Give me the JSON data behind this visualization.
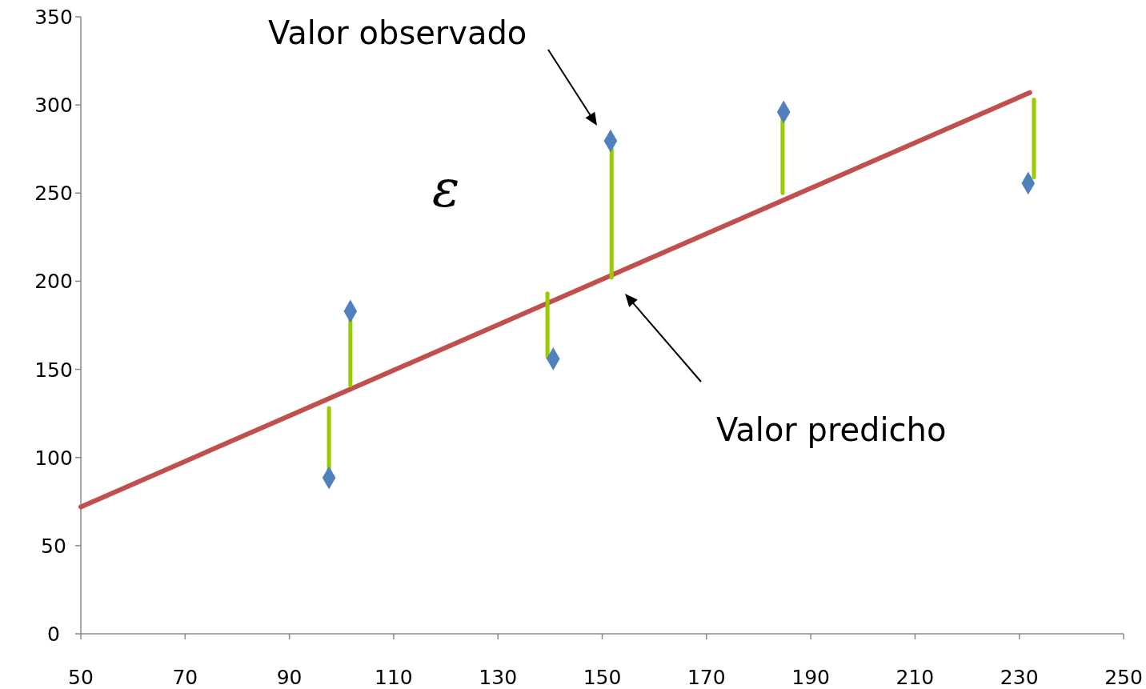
{
  "chart_data": {
    "type": "scatter",
    "xlim": [
      50,
      250
    ],
    "ylim": [
      0,
      350
    ],
    "xticks": [
      50,
      70,
      90,
      110,
      130,
      150,
      170,
      190,
      210,
      230,
      250
    ],
    "yticks": [
      0,
      50,
      100,
      150,
      200,
      250,
      300,
      350
    ],
    "grid": false,
    "series": [
      {
        "type": "line",
        "marker": "none",
        "color": "#c0504d",
        "x": [
          50,
          232
        ],
        "values": [
          72,
          307
        ]
      },
      {
        "type": "line",
        "marker": "none",
        "color": "#99cc00",
        "x": [
          97.6,
          97.6
        ],
        "values": [
          128,
          93
        ]
      },
      {
        "type": "line",
        "marker": "none",
        "color": "#99cc00",
        "x": [
          101.7,
          101.7
        ],
        "values": [
          178,
          141
        ]
      },
      {
        "type": "line",
        "marker": "none",
        "color": "#99cc00",
        "x": [
          139.5,
          139.5
        ],
        "values": [
          193,
          157
        ]
      },
      {
        "type": "line",
        "marker": "none",
        "color": "#99cc00",
        "x": [
          151.8,
          151.8
        ],
        "values": [
          275,
          202
        ]
      },
      {
        "type": "line",
        "marker": "none",
        "color": "#99cc00",
        "x": [
          184.6,
          184.6
        ],
        "values": [
          294,
          250
        ]
      },
      {
        "type": "line",
        "marker": "none",
        "color": "#99cc00",
        "x": [
          232.8,
          232.8
        ],
        "values": [
          303,
          259
        ]
      },
      {
        "marker": "diamond",
        "color": "#4f81bd",
        "x": [
          97.6,
          101.7,
          140.6,
          151.6,
          184.8,
          231.7
        ],
        "values": [
          88.5,
          183,
          156,
          279.6,
          296,
          255.6
        ]
      }
    ],
    "annotations": [
      "Valor observado",
      "Valor predicho",
      "ε"
    ]
  }
}
